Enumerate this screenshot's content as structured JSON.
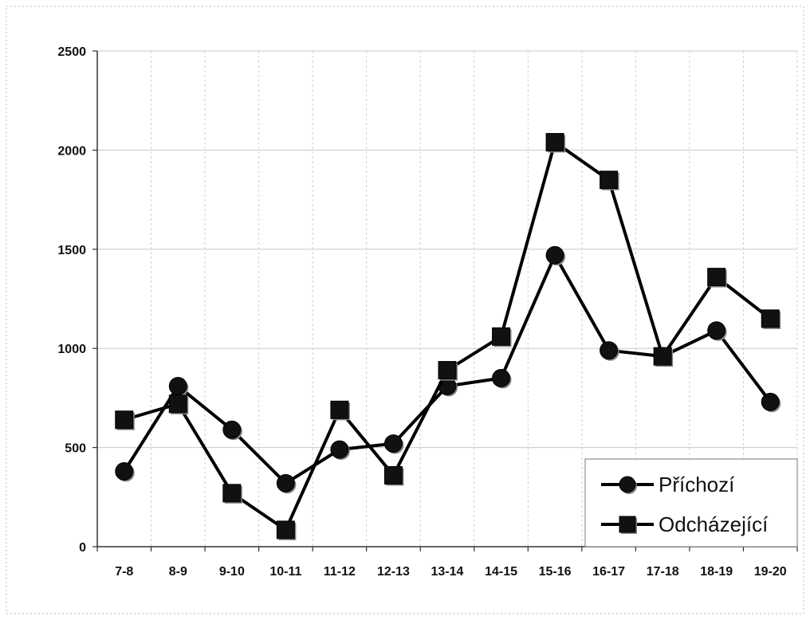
{
  "chart_data": {
    "type": "line",
    "title": "",
    "xlabel": "",
    "ylabel": "",
    "categories": [
      "7-8",
      "8-9",
      "9-10",
      "10-11",
      "11-12",
      "12-13",
      "13-14",
      "14-15",
      "15-16",
      "16-17",
      "17-18",
      "18-19",
      "19-20"
    ],
    "ylim": [
      0,
      2500
    ],
    "yticks": [
      0,
      500,
      1000,
      1500,
      2000,
      2500
    ],
    "grid": true,
    "legend_position": "bottom-right",
    "series": [
      {
        "name": "Příchozí",
        "marker": "circle",
        "color": "#000000",
        "values": [
          380,
          810,
          590,
          320,
          490,
          520,
          810,
          850,
          1470,
          990,
          960,
          1090,
          730
        ]
      },
      {
        "name": "Odcházející",
        "marker": "square",
        "color": "#000000",
        "values": [
          640,
          720,
          270,
          85,
          690,
          360,
          890,
          1060,
          2040,
          1850,
          960,
          1360,
          1150
        ]
      }
    ]
  }
}
